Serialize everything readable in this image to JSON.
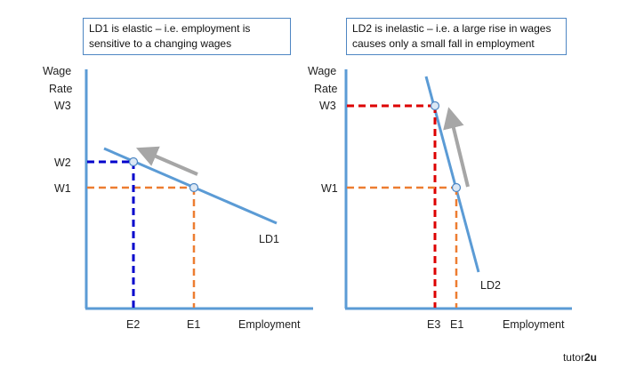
{
  "notes": {
    "left": "LD1 is elastic – i.e. employment is sensitive to a changing wages",
    "right": "LD2 is inelastic – i.e. a large rise in wages causes only a small fall in employment"
  },
  "left_chart": {
    "y_axis_label_line1": "Wage",
    "y_axis_label_line2": "Rate",
    "x_axis_label": "Employment",
    "y_ticks": [
      "W2",
      "W1"
    ],
    "x_ticks": [
      "E2",
      "E1"
    ],
    "curve_label": "LD1"
  },
  "right_chart": {
    "y_axis_label_line1": "Wage",
    "y_axis_label_line2": "Rate",
    "x_axis_label": "Employment",
    "y_ticks": [
      "W3",
      "W1"
    ],
    "x_ticks": [
      "E3",
      "E1"
    ],
    "curve_label": "LD2"
  },
  "left_y_top_label": "W3",
  "brand": {
    "prefix": "tutor",
    "suffix": "2u"
  },
  "colors": {
    "axis": "#5b9bd5",
    "curve": "#5b9bd5",
    "dash_orange": "#ed7d31",
    "dash_blue": "#0000cc",
    "dash_red": "#dd0000",
    "arrow": "#a6a6a6"
  }
}
